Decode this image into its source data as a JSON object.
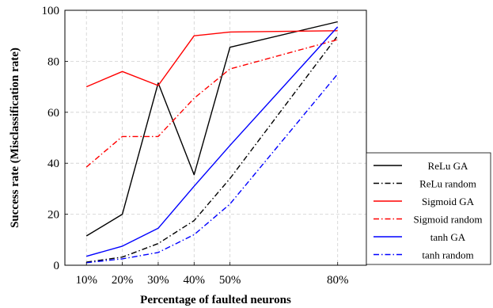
{
  "chart_data": {
    "type": "line",
    "xlabel": "Percentage of faulted neurons",
    "ylabel": "Success rate (Misclassification rate)",
    "x": [
      10,
      20,
      30,
      40,
      50,
      80
    ],
    "x_tick_labels": [
      "10%",
      "20%",
      "30%",
      "40%",
      "50%",
      "80%"
    ],
    "xlim": [
      4,
      88
    ],
    "ylim": [
      0,
      100
    ],
    "y_ticks": [
      0,
      20,
      40,
      60,
      80,
      100
    ],
    "y_tick_labels": [
      "0",
      "20",
      "40",
      "60",
      "80",
      "100"
    ],
    "grid": true,
    "legend_position": "lower-right, outside plot area",
    "series": [
      {
        "name": "ReLu GA",
        "color": "#000000",
        "dash": "solid",
        "values": [
          11.5,
          20,
          71.5,
          35.5,
          85.5,
          95.5
        ]
      },
      {
        "name": "ReLu random",
        "color": "#000000",
        "dash": "dashdot",
        "values": [
          1.2,
          3.2,
          8.5,
          17.5,
          34,
          90
        ]
      },
      {
        "name": "Sigmoid GA",
        "color": "#ff0000",
        "dash": "solid",
        "values": [
          70,
          76,
          70.5,
          90,
          91.5,
          92
        ]
      },
      {
        "name": "Sigmoid random",
        "color": "#ff0000",
        "dash": "dashdot",
        "values": [
          38.5,
          50.5,
          50.5,
          65.5,
          77,
          88.5
        ]
      },
      {
        "name": "tanh GA",
        "color": "#0000ff",
        "dash": "solid",
        "values": [
          3.5,
          7.5,
          14.5,
          31,
          47,
          93.5
        ]
      },
      {
        "name": "tanh random",
        "color": "#0000ff",
        "dash": "dashdot",
        "values": [
          1,
          2.5,
          5,
          12,
          24,
          75
        ]
      }
    ]
  }
}
